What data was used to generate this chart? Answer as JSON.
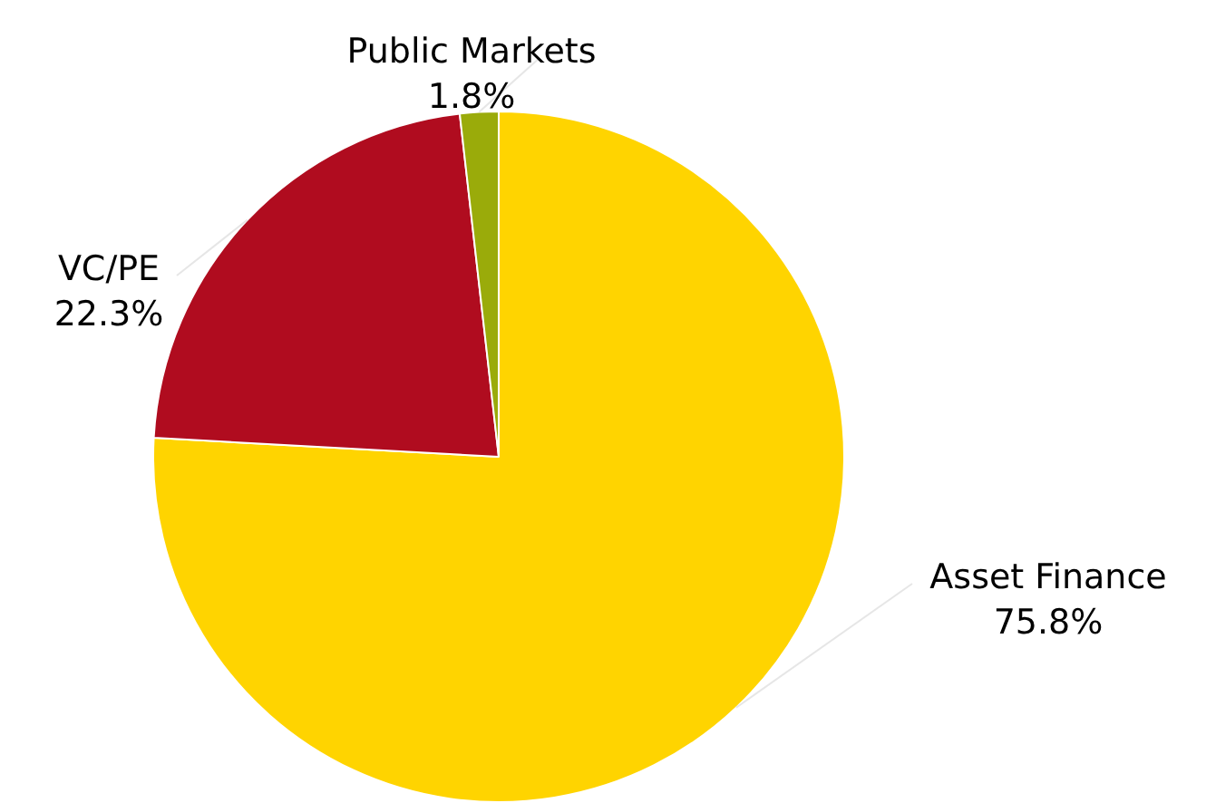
{
  "chart_data": {
    "type": "pie",
    "categories": [
      "Asset Finance",
      "VC/PE",
      "Public Markets"
    ],
    "values": [
      75.8,
      22.3,
      1.8
    ],
    "colors": [
      "#ffd400",
      "#b00c1f",
      "#9aab0a"
    ],
    "value_labels": [
      "75.8%",
      "22.3%",
      "1.8%"
    ],
    "legend": false
  }
}
